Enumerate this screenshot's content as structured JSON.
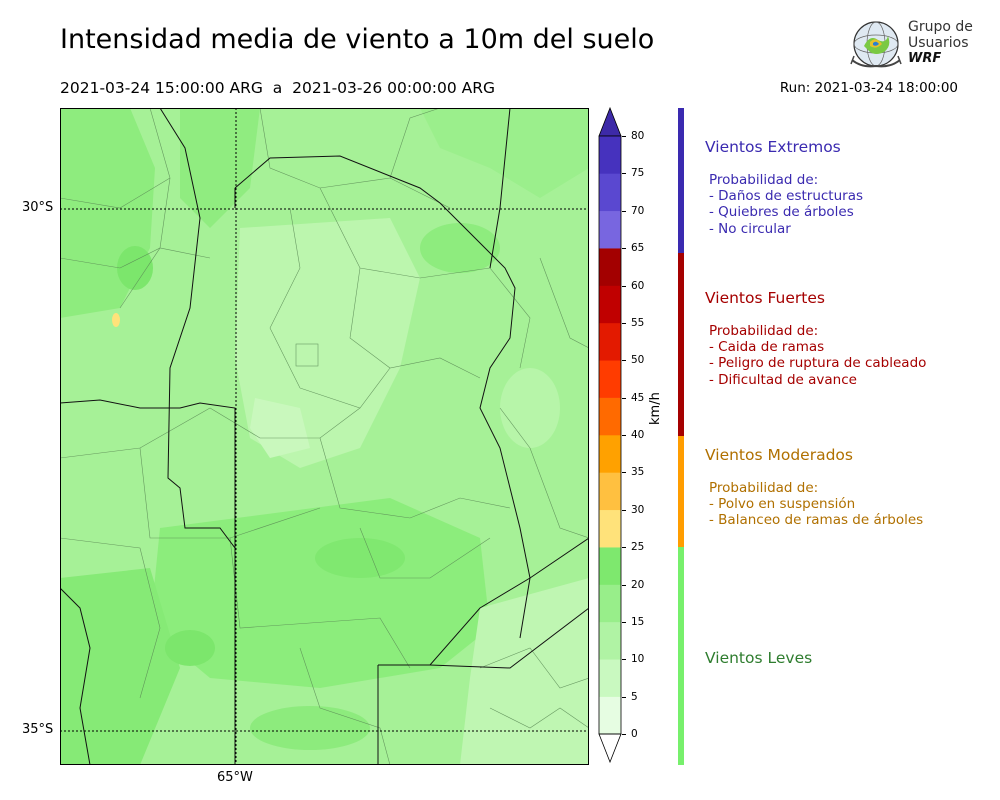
{
  "title": "Intensidad media de viento a 10m del suelo",
  "period": "2021-03-24 15:00:00 ARG  a  2021-03-26 00:00:00 ARG",
  "run": "Run: 2021-03-24 18:00:00",
  "logo": {
    "line1": "Grupo de",
    "line2": "Usuarios",
    "line3": "WRF"
  },
  "map": {
    "lat_labels": [
      "30°S",
      "35°S"
    ],
    "lon_labels": [
      "65°W"
    ],
    "highlight_value_kmh": 27,
    "colors": {
      "light": "#b4f5a5",
      "medium": "#98ee8a",
      "strong": "#7ee86e",
      "highlight": "#ffe27a"
    }
  },
  "colorbar": {
    "unit": "km/h",
    "ticks": [
      "0",
      "5",
      "10",
      "15",
      "20",
      "25",
      "30",
      "35",
      "40",
      "45",
      "50",
      "55",
      "60",
      "65",
      "70",
      "75",
      "80"
    ],
    "colors": [
      "#e6fde2",
      "#c9f9c0",
      "#b0f3a4",
      "#98ee8a",
      "#7ee86e",
      "#ffe27a",
      "#ffc040",
      "#ffa100",
      "#ff6a00",
      "#ff3c00",
      "#e31a00",
      "#c00000",
      "#a30000",
      "#7866e0",
      "#5a48d0",
      "#4632be"
    ],
    "min_color": "#ffffff",
    "max_color": "#3d2aa8"
  },
  "categories": [
    {
      "title": "Vientos Extremos",
      "color": "#3a2ab0",
      "bar_color": "#3a2ab0",
      "description": [
        "Probabilidad de:",
        "- Daños de estructuras",
        "- Quiebres de árboles",
        "- No circular"
      ]
    },
    {
      "title": "Vientos Fuertes",
      "color": "#a50000",
      "bar_color": "#a50000",
      "description": [
        "Probabilidad de:",
        "- Caida de ramas",
        "- Peligro de ruptura de cableado",
        "- Dificultad de avance"
      ]
    },
    {
      "title": "Vientos Moderados",
      "color": "#b07000",
      "bar_color": "#ff9d00",
      "description": [
        "Probabilidad de:",
        "- Polvo en suspensión",
        "- Balanceo de ramas de árboles"
      ]
    },
    {
      "title": "Vientos Leves",
      "color": "#2f7d2f",
      "bar_color": "#77f06c",
      "description": []
    }
  ]
}
